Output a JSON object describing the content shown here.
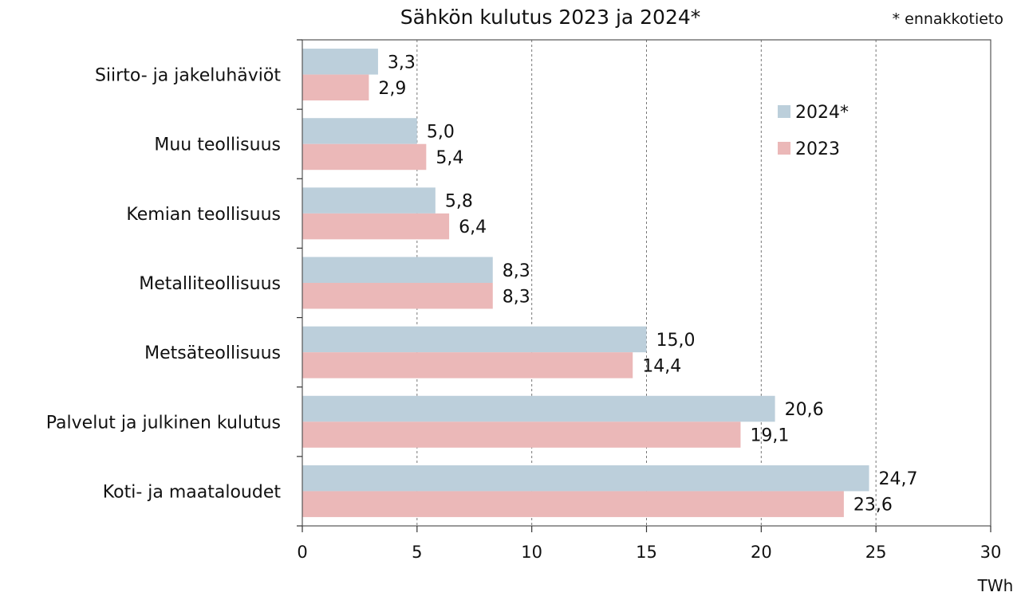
{
  "chart_data": {
    "type": "bar",
    "orientation": "horizontal",
    "title": "Sähkön kulutus 2023 ja 2024*",
    "note": "* ennakkotieto",
    "xlabel": "TWh",
    "ylabel": "",
    "xlim": [
      0,
      30
    ],
    "xticks": [
      0,
      5,
      10,
      15,
      20,
      25,
      30
    ],
    "grid": true,
    "legend": "right, upper",
    "categories": [
      "Siirto- ja jakeluhäviöt",
      "Muu teollisuus",
      "Kemian teollisuus",
      "Metalliteollisuus",
      "Metsäteollisuus",
      "Palvelut ja julkinen kulutus",
      "Koti- ja maataloudet"
    ],
    "series": [
      {
        "name": "2024*",
        "color": "#bccfdb",
        "values": [
          3.3,
          5.0,
          5.8,
          8.3,
          15.0,
          20.6,
          24.7
        ],
        "labels": [
          "3,3",
          "5,0",
          "5,8",
          "8,3",
          "15,0",
          "20,6",
          "24,7"
        ]
      },
      {
        "name": "2023",
        "color": "#ebb8b8",
        "values": [
          2.9,
          5.4,
          6.4,
          8.3,
          14.4,
          19.1,
          23.6
        ],
        "labels": [
          "2,9",
          "5,4",
          "6,4",
          "8,3",
          "14,4",
          "19,1",
          "23,6"
        ]
      }
    ]
  }
}
